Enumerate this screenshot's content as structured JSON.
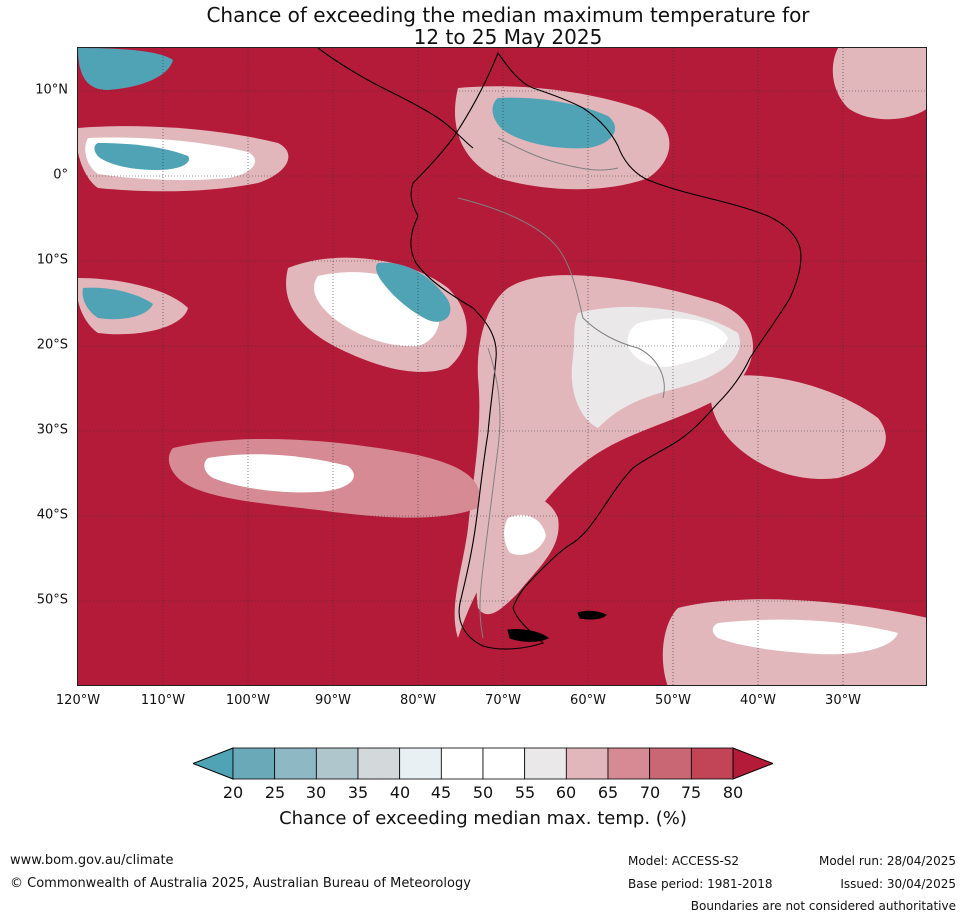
{
  "title": {
    "line1": "Chance of exceeding the median maximum temperature for",
    "line2": "12 to 25 May 2025"
  },
  "map": {
    "lat_labels": [
      "10°N",
      "0°",
      "10°S",
      "20°S",
      "30°S",
      "40°S",
      "50°S"
    ],
    "lon_labels": [
      "120°W",
      "110°W",
      "100°W",
      "90°W",
      "80°W",
      "70°W",
      "60°W",
      "50°W",
      "40°W",
      "30°W"
    ],
    "colors": {
      "c80": "#b31b38",
      "c75": "#c14556",
      "c70": "#c96774",
      "c65": "#d68a93",
      "c60": "#e2b7bc",
      "c55": "#ebe8ea",
      "c50": "#ffffff",
      "c45": "#ffffff",
      "c40": "#e9f0f3",
      "c35": "#d3d8db",
      "c30": "#aec6cc",
      "c25": "#8fb8c5",
      "c20": "#6aa9b8",
      "c15": "#4fa3b5",
      "coast": "#000000",
      "border": "#808080"
    }
  },
  "colorbar": {
    "ticks": [
      "20",
      "25",
      "30",
      "35",
      "40",
      "45",
      "50",
      "55",
      "60",
      "65",
      "70",
      "75",
      "80"
    ],
    "colors": [
      "#6aa9b8",
      "#8fb8c5",
      "#aec6cc",
      "#d3d8db",
      "#e9f0f3",
      "#ffffff",
      "#ffffff",
      "#ebe8ea",
      "#e2b7bc",
      "#d68a93",
      "#c96774",
      "#c14556"
    ],
    "under_color": "#4fa3b5",
    "over_color": "#b31b38",
    "label": "Chance of exceeding median max. temp. (%)"
  },
  "footer": {
    "website": "www.bom.gov.au/climate",
    "copyright": "© Commonwealth of Australia 2025, Australian Bureau of Meteorology",
    "model": "Model: ACCESS-S2",
    "base_period": "Base period: 1981-2018",
    "model_run": "Model run: 28/04/2025",
    "issued": "Issued: 30/04/2025",
    "disclaimer": "Boundaries are not considered authoritative"
  }
}
